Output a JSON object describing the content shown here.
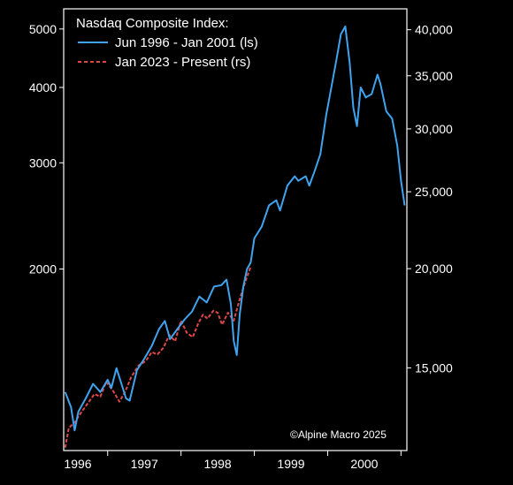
{
  "chart_data": {
    "type": "line",
    "title": "",
    "legend": {
      "title": "Nasdaq Composite Index:",
      "placement": "top-left",
      "entries": [
        {
          "label": "Jun 1996 - Jan 2001 (ls)",
          "color": "#3fa3ee",
          "style": "solid"
        },
        {
          "label": "Jan 2023 - Present (rs)",
          "color": "#e04848",
          "style": "dashed"
        }
      ]
    },
    "annotation": "©Alpine Macro 2025",
    "x_axis": {
      "ticks": [
        "1996",
        "1997",
        "1998",
        "1999",
        "2000"
      ],
      "range": [
        1996.4,
        2001.08
      ]
    },
    "left_axis": {
      "scale": "log",
      "range": [
        1000,
        5400
      ],
      "ticks": [
        {
          "value": 2000,
          "label": "2000"
        },
        {
          "value": 3000,
          "label": "3000"
        },
        {
          "value": 4000,
          "label": "4000"
        },
        {
          "value": 5000,
          "label": "5000"
        }
      ]
    },
    "right_axis": {
      "scale": "log",
      "range": [
        11800,
        42500
      ],
      "ticks": [
        {
          "value": 15000,
          "label": "15,000"
        },
        {
          "value": 20000,
          "label": "20,000"
        },
        {
          "value": 25000,
          "label": "25,000"
        },
        {
          "value": 30000,
          "label": "30,000"
        },
        {
          "value": 35000,
          "label": "35,000"
        },
        {
          "value": 40000,
          "label": "40,000"
        }
      ]
    },
    "grid": false,
    "series": [
      {
        "name": "Jun 1996 - Jan 2001 (ls)",
        "axis": "left",
        "color": "#3fa3ee",
        "style": "solid",
        "x": [
          1996.42,
          1996.5,
          1996.55,
          1996.6,
          1996.7,
          1996.8,
          1996.9,
          1997.0,
          1997.05,
          1997.12,
          1997.25,
          1997.3,
          1997.4,
          1997.5,
          1997.6,
          1997.7,
          1997.78,
          1997.85,
          1997.95,
          1998.05,
          1998.15,
          1998.25,
          1998.35,
          1998.45,
          1998.55,
          1998.62,
          1998.68,
          1998.72,
          1998.76,
          1998.8,
          1998.85,
          1998.9,
          1998.95,
          1999.0,
          1999.1,
          1999.2,
          1999.3,
          1999.35,
          1999.45,
          1999.55,
          1999.6,
          1999.7,
          1999.75,
          1999.82,
          1999.9,
          1999.98,
          2000.05,
          2000.12,
          2000.18,
          2000.24,
          2000.3,
          2000.35,
          2000.4,
          2000.45,
          2000.52,
          2000.6,
          2000.68,
          2000.72,
          2000.8,
          2000.88,
          2000.95,
          2001.0,
          2001.05
        ],
        "values": [
          1250,
          1180,
          1080,
          1160,
          1220,
          1290,
          1250,
          1310,
          1270,
          1370,
          1220,
          1210,
          1360,
          1420,
          1490,
          1590,
          1640,
          1530,
          1590,
          1650,
          1700,
          1800,
          1760,
          1870,
          1880,
          1920,
          1750,
          1520,
          1440,
          1680,
          1870,
          2000,
          2050,
          2250,
          2350,
          2550,
          2600,
          2500,
          2750,
          2850,
          2800,
          2850,
          2750,
          2900,
          3100,
          3600,
          4000,
          4450,
          4900,
          5050,
          4400,
          3700,
          3450,
          4000,
          3850,
          3900,
          4200,
          4050,
          3650,
          3550,
          3200,
          2800,
          2550
        ]
      },
      {
        "name": "Jan 2023 - Present (rs)",
        "axis": "right",
        "color": "#e04848",
        "style": "dashed",
        "x": [
          1996.42,
          1996.47,
          1996.55,
          1996.62,
          1996.72,
          1996.82,
          1996.9,
          1996.98,
          1997.08,
          1997.16,
          1997.24,
          1997.32,
          1997.42,
          1997.52,
          1997.6,
          1997.68,
          1997.76,
          1997.84,
          1997.92,
          1998.0,
          1998.08,
          1998.16,
          1998.24,
          1998.3,
          1998.36,
          1998.44,
          1998.5,
          1998.56,
          1998.64,
          1998.72,
          1998.8,
          1998.88,
          1998.95
        ],
        "values": [
          11900,
          12600,
          12800,
          13100,
          13500,
          13900,
          13800,
          14400,
          14000,
          13600,
          14000,
          14600,
          15100,
          15300,
          15700,
          15600,
          15900,
          16500,
          16200,
          17200,
          16600,
          16400,
          17100,
          17500,
          17300,
          17700,
          17600,
          17000,
          17600,
          17200,
          18300,
          19300,
          20100
        ]
      }
    ]
  }
}
